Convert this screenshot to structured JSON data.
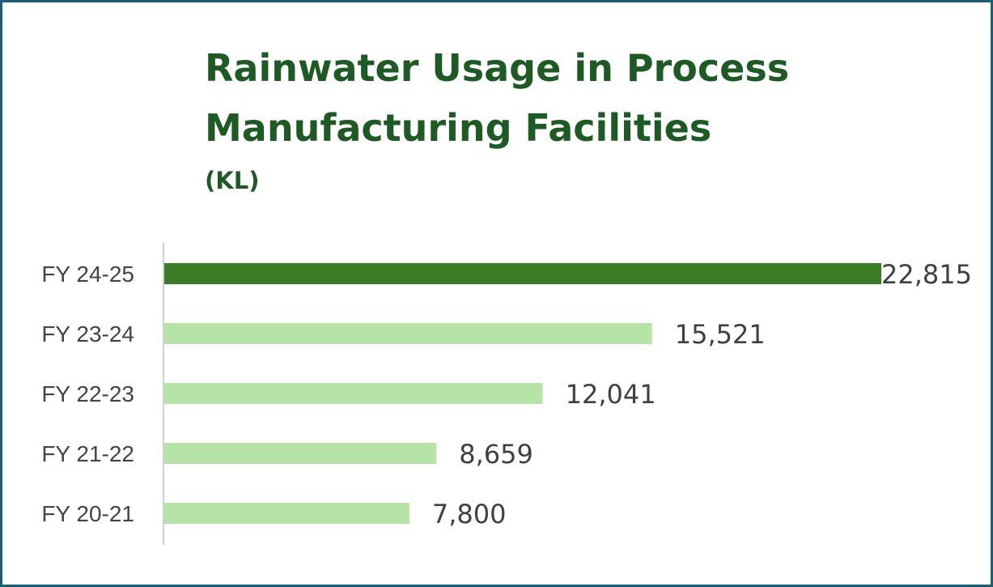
{
  "chart_data": {
    "type": "bar",
    "orientation": "horizontal",
    "title": "Rainwater Usage in Process Manufacturing Facilities",
    "subtitle": "(KL)",
    "categories": [
      "FY 24-25",
      "FY 23-24",
      "FY 22-23",
      "FY 21-22",
      "FY 20-21"
    ],
    "values": [
      22815,
      15521,
      12041,
      8659,
      7800
    ],
    "value_labels": [
      "22,815",
      "15,521",
      "12,041",
      "8,659",
      "7,800"
    ],
    "highlight_index": 0,
    "colors": {
      "highlight": "#3a7d24",
      "default": "#b5e4a6",
      "title": "#1d5a24",
      "border": "#1b5e7a",
      "axis": "#d0d0d0"
    },
    "grid": false,
    "legend": "none",
    "xlim": [
      0,
      22815
    ]
  }
}
